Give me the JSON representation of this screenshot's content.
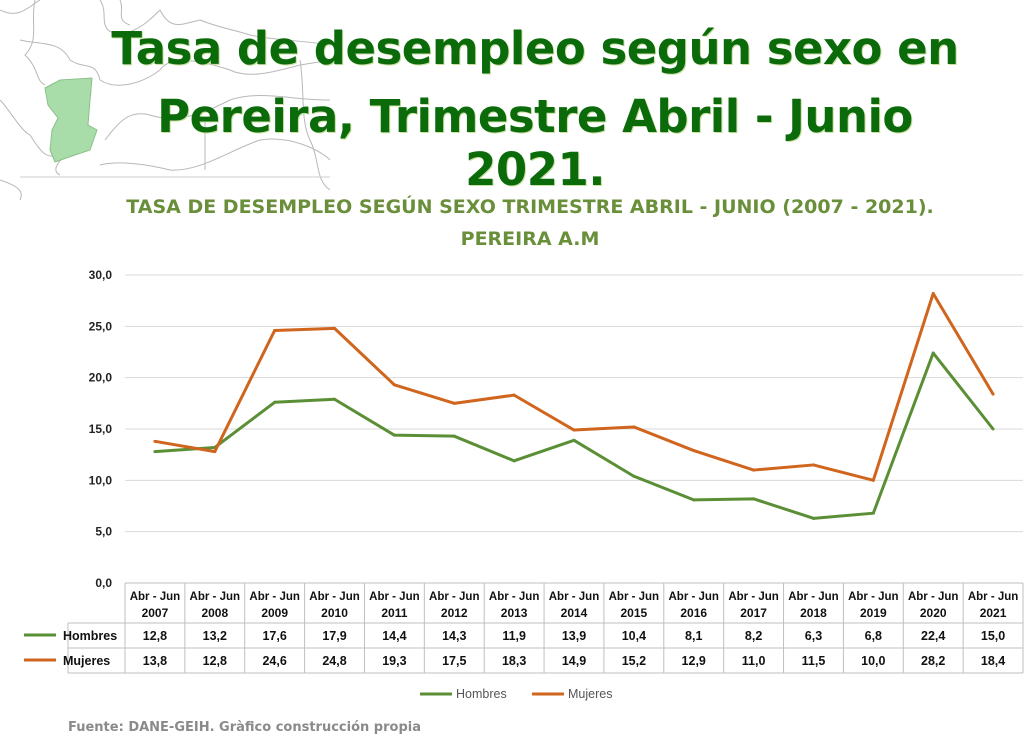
{
  "header": {
    "title_line1": "Tasa de desempleo según sexo en",
    "title_line2": "Pereira, Trimestre Abril - Junio 2021."
  },
  "chart_data": {
    "type": "line",
    "title": "TASA DE DESEMPLEO SEGÚN SEXO TRIMESTRE ABRIL - JUNIO (2007 - 2021).",
    "subtitle": "PEREIRA A.M",
    "categories": [
      [
        "Abr - Jun",
        "2007"
      ],
      [
        "Abr - Jun",
        "2008"
      ],
      [
        "Abr - Jun",
        "2009"
      ],
      [
        "Abr - Jun",
        "2010"
      ],
      [
        "Abr - Jun",
        "2011"
      ],
      [
        "Abr - Jun",
        "2012"
      ],
      [
        "Abr - Jun",
        "2013"
      ],
      [
        "Abr - Jun",
        "2014"
      ],
      [
        "Abr - Jun",
        "2015"
      ],
      [
        "Abr - Jun",
        "2016"
      ],
      [
        "Abr - Jun",
        "2017"
      ],
      [
        "Abr - Jun",
        "2018"
      ],
      [
        "Abr - Jun",
        "2019"
      ],
      [
        "Abr - Jun",
        "2020"
      ],
      [
        "Abr - Jun",
        "2021"
      ]
    ],
    "series": [
      {
        "name": "Hombres",
        "color": "#5b8f36",
        "values": [
          12.8,
          13.2,
          17.6,
          17.9,
          14.4,
          14.3,
          11.9,
          13.9,
          10.4,
          8.1,
          8.2,
          6.3,
          6.8,
          22.4,
          15.0
        ],
        "labels": [
          "12,8",
          "13,2",
          "17,6",
          "17,9",
          "14,4",
          "14,3",
          "11,9",
          "13,9",
          "10,4",
          "8,1",
          "8,2",
          "6,3",
          "6,8",
          "22,4",
          "15,0"
        ]
      },
      {
        "name": "Mujeres",
        "color": "#d0651e",
        "values": [
          13.8,
          12.8,
          24.6,
          24.8,
          19.3,
          17.5,
          18.3,
          14.9,
          15.2,
          12.9,
          11.0,
          11.5,
          10.0,
          28.2,
          18.4
        ],
        "labels": [
          "13,8",
          "12,8",
          "24,6",
          "24,8",
          "19,3",
          "17,5",
          "18,3",
          "14,9",
          "15,2",
          "12,9",
          "11,0",
          "11,5",
          "10,0",
          "28,2",
          "18,4"
        ]
      }
    ],
    "yticks": [
      "0,0",
      "5,0",
      "10,0",
      "15,0",
      "20,0",
      "25,0",
      "30,0"
    ],
    "ylim": [
      0,
      30
    ],
    "grid": true,
    "legend": "bottom",
    "data_table": true
  },
  "footer": {
    "source": "Fuente: DANE-GEIH. Gràfico construcción propia"
  }
}
